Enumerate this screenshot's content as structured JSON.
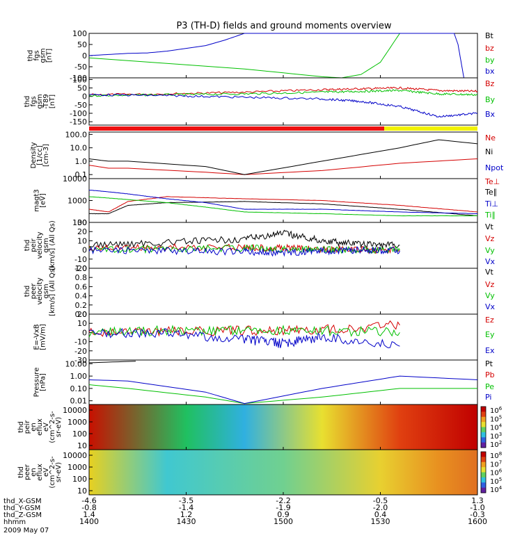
{
  "chart_data": {
    "type": "line",
    "title": "P3 (TH-D) fields and ground moments overview",
    "panels": [
      {
        "id": "fgs",
        "ylabel": [
          "thd",
          "fgs",
          "gsm",
          "[nT]"
        ],
        "yticks": [
          100,
          50,
          0,
          -50,
          -100
        ],
        "ylim": [
          -100,
          100
        ],
        "series": [
          {
            "name": "Bt",
            "color": "#000000",
            "x": [],
            "y": []
          },
          {
            "name": "bz",
            "color": "#d40000",
            "x": [],
            "y": []
          },
          {
            "name": "by",
            "color": "#00c000",
            "x": [
              0,
              0.2,
              0.4,
              0.6,
              0.65,
              0.7,
              0.75,
              0.8
            ],
            "y": [
              -10,
              -35,
              -60,
              -95,
              -100,
              -85,
              -30,
              100
            ]
          },
          {
            "name": "bx",
            "color": "#0000c8",
            "x": [
              0,
              0.05,
              0.1,
              0.15,
              0.2,
              0.3,
              0.35,
              0.4,
              0.94,
              0.95,
              0.965
            ],
            "y": [
              0,
              5,
              10,
              12,
              20,
              45,
              70,
              100,
              100,
              50,
              -100
            ]
          }
        ]
      },
      {
        "id": "fgs-t89",
        "ylabel": [
          "thd",
          "fgs",
          "gsm",
          "-T89",
          "[nT]"
        ],
        "yticks": [
          100,
          50,
          0,
          -50,
          -100,
          -150
        ],
        "ylim": [
          -170,
          110
        ],
        "series": [
          {
            "name": "Bz",
            "color": "#d40000",
            "x": [
              0,
              0.2,
              0.4,
              0.6,
              0.7,
              0.8,
              0.9,
              1.0
            ],
            "y": [
              10,
              15,
              25,
              40,
              45,
              50,
              35,
              30
            ]
          },
          {
            "name": "By",
            "color": "#00c000",
            "x": [
              0,
              0.2,
              0.4,
              0.6,
              0.7,
              0.8,
              0.9,
              1.0
            ],
            "y": [
              5,
              10,
              15,
              25,
              30,
              35,
              15,
              10
            ]
          },
          {
            "name": "Bx",
            "color": "#0000c8",
            "x": [
              0,
              0.2,
              0.4,
              0.6,
              0.7,
              0.8,
              0.9,
              1.0
            ],
            "y": [
              10,
              5,
              -5,
              -15,
              -30,
              -60,
              -120,
              -100
            ]
          }
        ]
      },
      {
        "id": "density",
        "ylabel": [
          "Density",
          "[1/cc]",
          "[cm-3]"
        ],
        "yticks": [
          "100.0",
          "10.0",
          "1.0",
          "0.1"
        ],
        "ylim_log": [
          0.05,
          150
        ],
        "series": [
          {
            "name": "Ne",
            "color": "#d40000",
            "x": [
              0,
              0.05,
              0.1,
              0.3,
              0.4,
              0.6,
              0.8,
              1.0
            ],
            "y": [
              0.5,
              0.3,
              0.3,
              0.15,
              0.1,
              0.2,
              0.7,
              1.5
            ]
          },
          {
            "name": "Ni",
            "color": "#000000",
            "x": [
              0,
              0.05,
              0.1,
              0.3,
              0.4,
              0.6,
              0.8,
              0.9,
              1.0
            ],
            "y": [
              1.5,
              1.0,
              1.0,
              0.4,
              0.1,
              1.0,
              10,
              40,
              20
            ]
          },
          {
            "name": "Npot",
            "color": "#0000c8",
            "x": [],
            "y": []
          }
        ]
      },
      {
        "id": "magt3",
        "ylabel": [
          "magt3",
          "[eV]"
        ],
        "yticks": [
          "10000",
          "1000",
          "100"
        ],
        "ylim_log": [
          100,
          10000
        ],
        "series": [
          {
            "name": "Te⊥",
            "color": "#d40000",
            "x": [
              0,
              0.05,
              0.1,
              0.2,
              0.4,
              0.6,
              0.8,
              1.0
            ],
            "y": [
              400,
              300,
              900,
              1500,
              1200,
              1000,
              600,
              300
            ]
          },
          {
            "name": "Te∥",
            "color": "#000000",
            "x": [
              0,
              0.05,
              0.1,
              0.2,
              0.4,
              0.6,
              0.8,
              1.0
            ],
            "y": [
              250,
              250,
              600,
              800,
              900,
              700,
              400,
              200
            ]
          },
          {
            "name": "Ti⊥",
            "color": "#0000c8",
            "x": [
              0,
              0.05,
              0.1,
              0.2,
              0.3,
              0.4,
              0.6,
              0.8,
              1.0
            ],
            "y": [
              3000,
              2500,
              2000,
              1200,
              800,
              400,
              400,
              300,
              250
            ]
          },
          {
            "name": "Ti∥",
            "color": "#00c000",
            "x": [
              0,
              0.05,
              0.1,
              0.2,
              0.3,
              0.4,
              0.6,
              0.8,
              1.0
            ],
            "y": [
              1500,
              1300,
              1100,
              800,
              500,
              300,
              250,
              200,
              200
            ]
          }
        ]
      },
      {
        "id": "peir-velocity",
        "ylabel": [
          "thd",
          "peir",
          "velocity",
          "gsm",
          "[km/s] (All Qs)"
        ],
        "yticks": [
          30,
          20,
          10,
          0,
          -10,
          -20
        ],
        "ylim": [
          -20,
          30
        ],
        "series": [
          {
            "name": "Vt",
            "color": "#000000",
            "x": [
              0,
              0.2,
              0.4,
              0.5,
              0.6,
              0.7,
              0.8
            ],
            "y": [
              5,
              8,
              12,
              18,
              10,
              6,
              5
            ]
          },
          {
            "name": "Vz",
            "color": "#d40000",
            "x": [
              0,
              0.2,
              0.4,
              0.5,
              0.6,
              0.7,
              0.8
            ],
            "y": [
              2,
              3,
              3,
              2,
              1,
              0,
              0
            ]
          },
          {
            "name": "Vy",
            "color": "#00c000",
            "x": [
              0,
              0.2,
              0.4,
              0.5,
              0.6,
              0.7,
              0.8
            ],
            "y": [
              0,
              1,
              2,
              1,
              0,
              0,
              0
            ]
          },
          {
            "name": "Vx",
            "color": "#0000c8",
            "x": [
              0,
              0.2,
              0.4,
              0.5,
              0.6,
              0.7,
              0.8
            ],
            "y": [
              0,
              -1,
              -2,
              -3,
              -1,
              0,
              -1
            ]
          }
        ]
      },
      {
        "id": "peer-velocity",
        "ylabel": [
          "thd",
          "peer",
          "velocity",
          "gsm",
          "[km/s] (All Qs)"
        ],
        "yticks": [
          "1.0",
          "0.8",
          "0.6",
          "0.4",
          "0.2",
          "0.0"
        ],
        "ylim": [
          0,
          1
        ],
        "series": [
          {
            "name": "Vt",
            "color": "#000000",
            "x": [],
            "y": []
          },
          {
            "name": "Vz",
            "color": "#d40000",
            "x": [],
            "y": []
          },
          {
            "name": "Vy",
            "color": "#00c000",
            "x": [],
            "y": []
          },
          {
            "name": "Vx",
            "color": "#0000c8",
            "x": [],
            "y": []
          }
        ]
      },
      {
        "id": "efield",
        "ylabel": [
          "E=-VxB",
          "[mV/m]"
        ],
        "yticks": [
          20,
          10,
          0,
          -10,
          -20,
          -30
        ],
        "ylim": [
          -30,
          20
        ],
        "series": [
          {
            "name": "Ez",
            "color": "#d40000",
            "x": [
              0,
              0.2,
              0.4,
              0.6,
              0.8
            ],
            "y": [
              0,
              1,
              2,
              3,
              8
            ]
          },
          {
            "name": "Ey",
            "color": "#00c000",
            "x": [
              0,
              0.2,
              0.4,
              0.6,
              0.8
            ],
            "y": [
              0,
              2,
              3,
              2,
              0
            ]
          },
          {
            "name": "Ex",
            "color": "#0000c8",
            "x": [
              0,
              0.2,
              0.4,
              0.5,
              0.6,
              0.8
            ],
            "y": [
              0,
              -1,
              -8,
              -12,
              -5,
              -15
            ]
          }
        ]
      },
      {
        "id": "pressure",
        "ylabel": [
          "Pressure",
          "[nPa]"
        ],
        "yticks": [
          "10.00",
          "1.00",
          "0.10",
          "0.01"
        ],
        "ylim_log": [
          0.005,
          20
        ],
        "series": [
          {
            "name": "Pt",
            "color": "#000000",
            "x": [
              0,
              0.12
            ],
            "y": [
              12,
              16
            ]
          },
          {
            "name": "Pb",
            "color": "#d40000",
            "x": [],
            "y": []
          },
          {
            "name": "Pe",
            "color": "#00c000",
            "x": [
              0,
              0.1,
              0.3,
              0.4,
              0.6,
              0.8,
              1.0
            ],
            "y": [
              0.2,
              0.1,
              0.02,
              0.006,
              0.02,
              0.1,
              0.1
            ]
          },
          {
            "name": "Pi",
            "color": "#0000c8",
            "x": [
              0,
              0.1,
              0.3,
              0.4,
              0.6,
              0.8,
              1.0
            ],
            "y": [
              0.5,
              0.4,
              0.05,
              0.006,
              0.1,
              1.0,
              0.5
            ]
          }
        ]
      },
      {
        "id": "peir-en-eflux",
        "type": "heatmap",
        "ylabel": [
          "thd",
          "peir",
          "en",
          "eflux",
          "eV",
          "(cm^2-s-",
          "sr-eV)"
        ],
        "yticks": [
          "10000",
          "1000",
          "100",
          "10"
        ],
        "colorbar_ticks": [
          "10^6",
          "10^5",
          "10^4",
          "10^3",
          "10^2"
        ]
      },
      {
        "id": "peer-en-eflux",
        "type": "heatmap",
        "ylabel": [
          "thd",
          "peer",
          "en",
          "eflux",
          "eV",
          "(cm^2-s-",
          "sr-eV)"
        ],
        "yticks": [
          "10000",
          "1000",
          "100",
          "10"
        ],
        "colorbar_ticks": [
          "10^8",
          "10^7",
          "10^6",
          "10^5",
          "10^4"
        ]
      }
    ],
    "mode_bar": [
      {
        "from": 0,
        "to": 0.76,
        "color": "#ee1111"
      },
      {
        "from": 0.76,
        "to": 1.0,
        "color": "#f2f200"
      }
    ],
    "x_axis": {
      "rows": [
        {
          "label": "thd_X-GSM",
          "values": [
            "-4.6",
            "-3.5",
            "-2.2",
            "-0.5",
            "1.3"
          ]
        },
        {
          "label": "thd_Y-GSM",
          "values": [
            "-0.8",
            "-1.4",
            "-1.9",
            "-2.0",
            "-1.0"
          ]
        },
        {
          "label": "thd_Z-GSM",
          "values": [
            "1.4",
            "1.2",
            "0.9",
            "0.4",
            "-0.3"
          ]
        },
        {
          "label": "hhmm",
          "values": [
            "1400",
            "1430",
            "1500",
            "1530",
            "1600"
          ]
        }
      ],
      "date": "2009 May 07"
    }
  }
}
